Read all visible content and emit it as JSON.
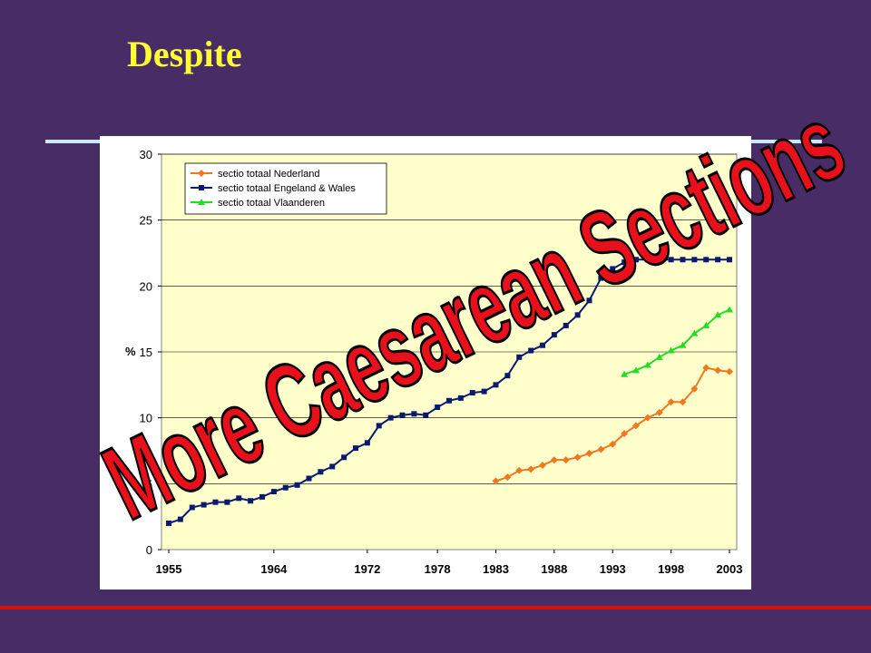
{
  "slide": {
    "title": "Despite"
  },
  "colors": {
    "background": "#472c66",
    "title": "#ffff33",
    "rule": "#cfe8f8",
    "bottom_rule": "#d81010",
    "plot_bg": "#ffffcc",
    "overlay_fill": "#e8101a"
  },
  "overlay_text": "More Caesarean Sections",
  "chart_data": {
    "type": "line",
    "ylabel": "%",
    "ylim": [
      0,
      30
    ],
    "yticks": [
      0,
      5,
      10,
      15,
      20,
      25,
      30
    ],
    "xlim": [
      1955,
      2003
    ],
    "xticks": [
      1955,
      1964,
      1972,
      1978,
      1983,
      1988,
      1993,
      1998,
      2003
    ],
    "grid": true,
    "legend_position": "top-left",
    "series": [
      {
        "name": "sectio totaal Nederland",
        "color": "#f07820",
        "marker": "diamond",
        "x": [
          1983,
          1984,
          1985,
          1986,
          1987,
          1988,
          1989,
          1990,
          1991,
          1992,
          1993,
          1994,
          1995,
          1996,
          1997,
          1998,
          1999,
          2000,
          2001,
          2002,
          2003
        ],
        "y": [
          5.2,
          5.5,
          6.0,
          6.1,
          6.4,
          6.8,
          6.8,
          7.0,
          7.3,
          7.6,
          8.0,
          8.8,
          9.4,
          10.0,
          10.4,
          11.2,
          11.2,
          12.2,
          13.8,
          13.6,
          13.5
        ]
      },
      {
        "name": "sectio totaal Engeland & Wales",
        "color": "#0a1a6e",
        "marker": "square",
        "x": [
          1955,
          1956,
          1957,
          1958,
          1959,
          1960,
          1961,
          1962,
          1963,
          1964,
          1965,
          1966,
          1967,
          1968,
          1969,
          1970,
          1971,
          1972,
          1973,
          1974,
          1975,
          1976,
          1977,
          1978,
          1979,
          1980,
          1981,
          1982,
          1983,
          1984,
          1985,
          1986,
          1987,
          1988,
          1989,
          1990,
          1991,
          1992,
          1993,
          1994,
          1995,
          1996,
          1997,
          1998,
          1999,
          2000,
          2001,
          2002,
          2003
        ],
        "y": [
          2.0,
          2.3,
          3.2,
          3.4,
          3.6,
          3.6,
          3.9,
          3.7,
          4.0,
          4.4,
          4.7,
          4.9,
          5.4,
          5.9,
          6.3,
          7.0,
          7.7,
          8.1,
          9.4,
          10.0,
          10.2,
          10.3,
          10.2,
          10.8,
          11.3,
          11.5,
          11.9,
          12.0,
          12.5,
          13.2,
          14.6,
          15.1,
          15.5,
          16.3,
          17.0,
          17.8,
          18.9,
          20.6,
          21.3,
          21.8,
          22.0,
          22.0,
          22.0,
          22.0,
          22.0,
          22.0,
          22.0,
          22.0,
          22.0
        ]
      },
      {
        "name": "sectio totaal Vlaanderen",
        "color": "#22dd22",
        "marker": "triangle",
        "x": [
          1994,
          1995,
          1996,
          1997,
          1998,
          1999,
          2000,
          2001,
          2002,
          2003
        ],
        "y": [
          13.3,
          13.6,
          14.0,
          14.6,
          15.1,
          15.5,
          16.4,
          17.0,
          17.8,
          18.2
        ]
      }
    ]
  }
}
